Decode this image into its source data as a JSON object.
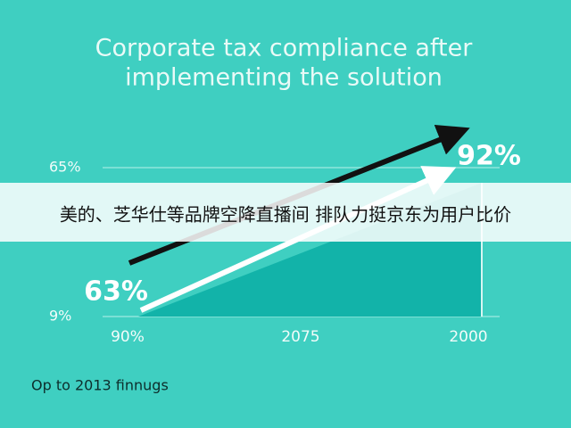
{
  "header": {
    "title_line1": "Corporate tax compliance after",
    "title_line2": "implementing the solution"
  },
  "axis": {
    "y_labels": [
      "65%",
      "9%"
    ],
    "x_labels": [
      "90%",
      "2075",
      "2000"
    ]
  },
  "annotations": {
    "start": "63%",
    "end": "92%"
  },
  "footnote": "Op to 2013 finnugs",
  "banner": "美的、芝华仕等品牌空降直播间 排队力挺京东为用户比价"
}
